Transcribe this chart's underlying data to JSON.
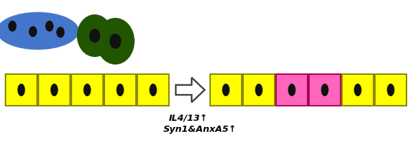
{
  "bg_color": "#ffffff",
  "cell_yellow": "#FFFF00",
  "cell_yellow_border": "#888800",
  "cell_pink": "#FF66BB",
  "cell_pink_border": "#AA0055",
  "nucleus_color": "#111111",
  "blue_cell_color": "#4477CC",
  "green_cell_color": "#225500",
  "fused_color": "#6B3010",
  "arrow_color": "#444444",
  "text_color": "#000000",
  "label1": "IL4/13",
  "label2": "Syn1&AnxA5",
  "up_arrow": "↑",
  "figw": 6.0,
  "figh": 2.2,
  "dpi": 100
}
